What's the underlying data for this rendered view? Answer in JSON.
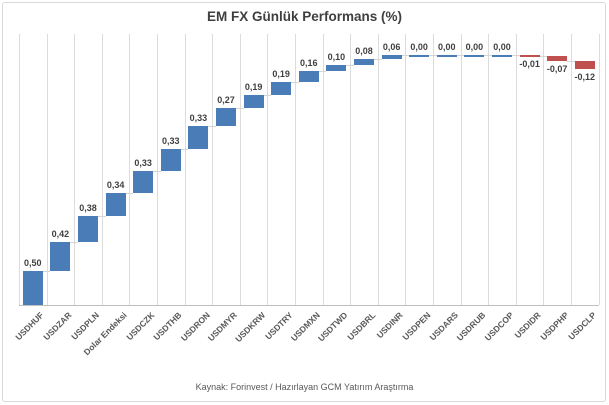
{
  "header": {
    "title": "EM FX Günlük Performans (%)"
  },
  "footer": {
    "source": "Kaynak: Forinvest / Hazırlayan GCM Yatırım Araştırma"
  },
  "colors": {
    "positive_bar": "#4a7cb8",
    "negative_bar": "#c0504d",
    "gridline": "#dcdcdc",
    "axis_line": "#bfbfbf",
    "connector": "#d6d6d6",
    "title_text": "#3f3f3f",
    "value_text": "#404040",
    "category_text": "#595959",
    "source_text": "#595959"
  },
  "chart_data": {
    "type": "bar",
    "subtype": "waterfall",
    "title": "EM FX Günlük Performans (%)",
    "categories": [
      "USDHUF",
      "USDZAR",
      "USDPLN",
      "Dolar Endeksi",
      "USDCZK",
      "USDTHB",
      "USDRON",
      "USDMYR",
      "USDKRW",
      "USDTRY",
      "USDMXN",
      "USDTWD",
      "USDBRL",
      "USDINR",
      "USDPEN",
      "USDARS",
      "USDRUB",
      "USDCOP",
      "USDIDR",
      "USDPHP",
      "USDCLP"
    ],
    "values": [
      0.5,
      0.42,
      0.38,
      0.34,
      0.33,
      0.33,
      0.33,
      0.27,
      0.19,
      0.19,
      0.16,
      0.1,
      0.08,
      0.06,
      0.0,
      0.0,
      0.0,
      0.0,
      -0.01,
      -0.07,
      -0.12
    ],
    "value_labels": [
      "0,50",
      "0,42",
      "0,38",
      "0,34",
      "0,33",
      "0,33",
      "0,33",
      "0,27",
      "0,19",
      "0,19",
      "0,16",
      "0,10",
      "0,08",
      "0,06",
      "0,00",
      "0,00",
      "0,00",
      "0,00",
      "-0,01",
      "-0,07",
      "-0,12"
    ],
    "xlabel": "",
    "ylabel": "",
    "ylim": [
      0,
      4
    ],
    "grid": "vertical category gridlines only",
    "legend": "none",
    "bar_color_rule": "blue for values >= 0, red for values < 0",
    "source": "Kaynak: Forinvest / Hazırlayan GCM Yatırım Araştırma"
  }
}
